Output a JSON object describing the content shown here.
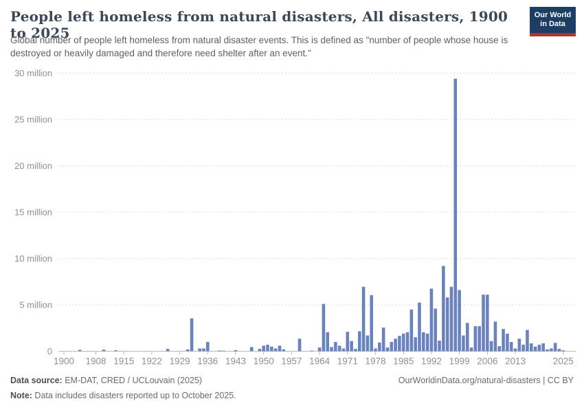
{
  "header": {
    "title": "People left homeless from natural disasters, All disasters, 1900 to 2025",
    "subtitle": "Global number of people left homeless from natural disaster events. This is defined as \"number of people whose house is destroyed or heavily damaged and therefore need shelter after an event.\"",
    "logo": {
      "line1": "Our World",
      "line2": "in Data",
      "bg_color": "#1d3d63",
      "accent_color": "#b0352c",
      "text_color": "#ffffff"
    }
  },
  "chart_data": {
    "type": "bar",
    "title": "People left homeless from natural disasters, All disasters, 1900 to 2025",
    "ylabel": "",
    "xlabel": "",
    "unit": "people (values in millions)",
    "bar_color": "#6c84b5",
    "grid": "dashed horizontal",
    "legend_position": "none",
    "xlim": [
      1900,
      2025
    ],
    "ylim_millions": [
      0,
      30
    ],
    "y_ticks": [
      {
        "value": 0,
        "label": "0"
      },
      {
        "value": 5,
        "label": "5 million"
      },
      {
        "value": 10,
        "label": "10 million"
      },
      {
        "value": 15,
        "label": "15 million"
      },
      {
        "value": 20,
        "label": "20 million"
      },
      {
        "value": 25,
        "label": "25 million"
      },
      {
        "value": 30,
        "label": "30 million"
      }
    ],
    "x_tick_years": [
      1900,
      1908,
      1915,
      1922,
      1929,
      1936,
      1943,
      1950,
      1957,
      1964,
      1971,
      1978,
      1985,
      1992,
      1999,
      2006,
      2013,
      2025
    ],
    "points_year_millions": [
      [
        1904,
        0.15
      ],
      [
        1910,
        0.17
      ],
      [
        1913,
        0.1
      ],
      [
        1926,
        0.25
      ],
      [
        1931,
        0.2
      ],
      [
        1932,
        3.55
      ],
      [
        1934,
        0.3
      ],
      [
        1935,
        0.3
      ],
      [
        1936,
        1.0
      ],
      [
        1939,
        0.08
      ],
      [
        1940,
        0.06
      ],
      [
        1943,
        0.12
      ],
      [
        1947,
        0.45
      ],
      [
        1949,
        0.25
      ],
      [
        1950,
        0.6
      ],
      [
        1951,
        0.7
      ],
      [
        1952,
        0.5
      ],
      [
        1953,
        0.3
      ],
      [
        1954,
        0.6
      ],
      [
        1955,
        0.2
      ],
      [
        1959,
        1.35
      ],
      [
        1962,
        0.07
      ],
      [
        1964,
        0.4
      ],
      [
        1965,
        5.1
      ],
      [
        1966,
        2.05
      ],
      [
        1967,
        0.45
      ],
      [
        1968,
        1.0
      ],
      [
        1969,
        0.6
      ],
      [
        1970,
        0.3
      ],
      [
        1971,
        2.1
      ],
      [
        1972,
        1.1
      ],
      [
        1973,
        0.25
      ],
      [
        1974,
        2.15
      ],
      [
        1975,
        6.95
      ],
      [
        1976,
        1.7
      ],
      [
        1977,
        6.05
      ],
      [
        1978,
        0.3
      ],
      [
        1979,
        0.95
      ],
      [
        1980,
        2.55
      ],
      [
        1981,
        0.4
      ],
      [
        1982,
        1.0
      ],
      [
        1983,
        1.35
      ],
      [
        1984,
        1.65
      ],
      [
        1985,
        1.9
      ],
      [
        1986,
        2.05
      ],
      [
        1987,
        4.5
      ],
      [
        1988,
        1.5
      ],
      [
        1989,
        5.25
      ],
      [
        1990,
        2.05
      ],
      [
        1991,
        1.9
      ],
      [
        1992,
        6.75
      ],
      [
        1993,
        4.6
      ],
      [
        1994,
        1.15
      ],
      [
        1995,
        9.2
      ],
      [
        1996,
        5.8
      ],
      [
        1997,
        6.95
      ],
      [
        1998,
        29.4
      ],
      [
        1999,
        6.6
      ],
      [
        2000,
        1.7
      ],
      [
        2001,
        3.05
      ],
      [
        2002,
        0.4
      ],
      [
        2003,
        2.7
      ],
      [
        2004,
        2.7
      ],
      [
        2005,
        6.1
      ],
      [
        2006,
        6.1
      ],
      [
        2007,
        1.1
      ],
      [
        2008,
        3.2
      ],
      [
        2009,
        0.55
      ],
      [
        2010,
        2.4
      ],
      [
        2011,
        1.9
      ],
      [
        2012,
        1.0
      ],
      [
        2013,
        0.3
      ],
      [
        2014,
        1.35
      ],
      [
        2015,
        0.7
      ],
      [
        2016,
        2.3
      ],
      [
        2017,
        0.85
      ],
      [
        2018,
        0.5
      ],
      [
        2019,
        0.7
      ],
      [
        2020,
        0.85
      ],
      [
        2021,
        0.2
      ],
      [
        2022,
        0.3
      ],
      [
        2023,
        0.9
      ],
      [
        2024,
        0.25
      ],
      [
        2025,
        0.1
      ]
    ]
  },
  "footer": {
    "source_label": "Data source:",
    "source_value": " EM-DAT, CRED / UCLouvain (2025)",
    "note_label": "Note:",
    "note_value": " Data includes disasters reported up to October 2025.",
    "link_text": "OurWorldinData.org/natural-disasters | CC BY"
  }
}
